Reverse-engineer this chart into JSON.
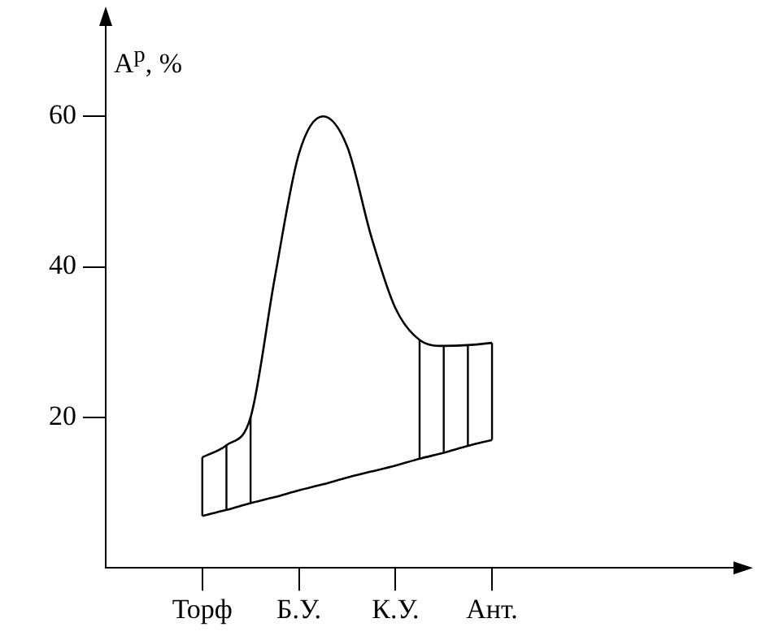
{
  "chart_data": {
    "type": "line",
    "ylabel": "A$^{р}$, %",
    "categories": [
      null,
      null,
      null,
      null,
      "Торф",
      null,
      null,
      null,
      "Б.У.",
      null,
      null,
      null,
      "К.У.",
      null,
      null,
      null,
      "Ант.",
      null,
      null,
      null,
      null,
      null,
      null,
      null,
      null,
      null,
      null
    ],
    "ylim": [
      0,
      72
    ],
    "yticks": [
      20,
      40,
      60
    ],
    "grid": false,
    "legend": false,
    "marker": "none",
    "line_style": "solid",
    "series": [
      {
        "color": "#000000",
        "values": [
          null,
          null,
          null,
          null,
          14.7,
          16.3,
          20,
          38.5,
          55,
          60,
          56,
          44,
          34.5,
          30.3,
          29.5,
          29.6,
          29.9,
          null,
          null,
          null,
          null,
          null,
          null,
          null,
          null,
          null,
          null
        ]
      },
      {
        "color": "#000000",
        "values": [
          null,
          null,
          null,
          null,
          6.9,
          7.7,
          8.6,
          9.4,
          10.3,
          11.1,
          12,
          12.8,
          13.6,
          14.5,
          15.3,
          16.2,
          17,
          null,
          null,
          null,
          null,
          null,
          null,
          null,
          null,
          null,
          null
        ]
      }
    ]
  }
}
